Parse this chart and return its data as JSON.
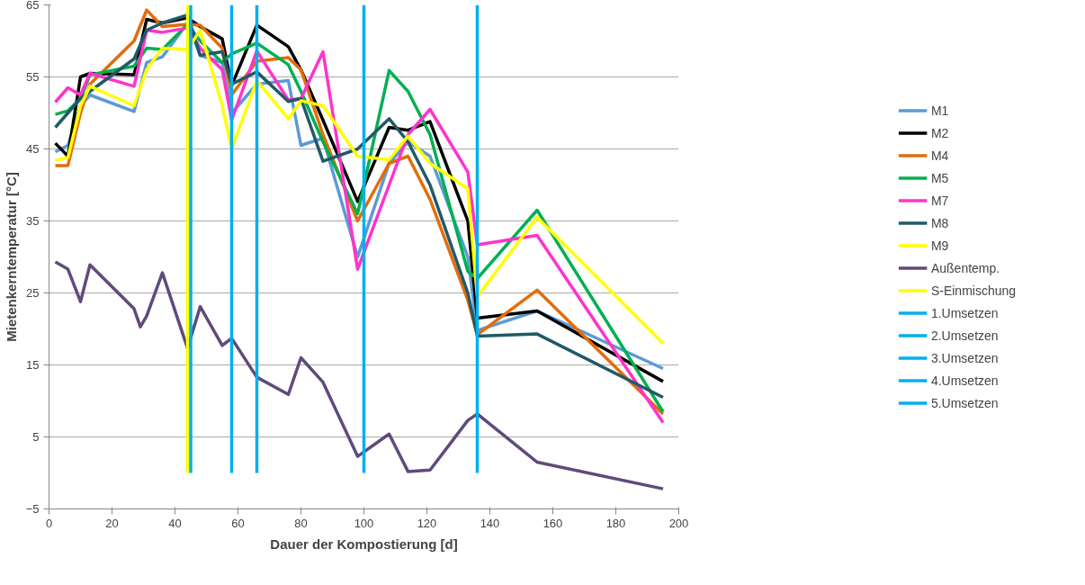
{
  "chart_data": {
    "type": "line",
    "xlabel": "Dauer der Kompostierung [d]",
    "ylabel": "Mietenkerntemperatur [°C]",
    "x": [
      2,
      6,
      10,
      13,
      27,
      31,
      36,
      44,
      48,
      55,
      58,
      66,
      76,
      80,
      87,
      98,
      108,
      114,
      121,
      133,
      136,
      155,
      195
    ],
    "series": [
      {
        "name": "M1",
        "color": "#5b9bd5",
        "values": [
          44.6,
          45.5,
          51,
          52.5,
          50.2,
          57,
          57.8,
          62.5,
          58,
          57,
          50,
          54,
          54.5,
          45.5,
          46.5,
          30,
          43,
          46,
          44,
          30,
          19.8,
          22.5,
          14.5
        ]
      },
      {
        "name": "M2",
        "color": "#000000",
        "values": [
          45.8,
          44,
          55,
          55.5,
          55.3,
          63,
          62.5,
          63.2,
          62,
          60.3,
          53.8,
          62.2,
          59.2,
          56,
          49,
          37.7,
          48,
          47.6,
          48.8,
          35,
          21.5,
          22.5,
          12.7
        ]
      },
      {
        "name": "M4",
        "color": "#e46c0a",
        "values": [
          42.7,
          42.7,
          50,
          54,
          60,
          64.3,
          62,
          62.3,
          62.2,
          59,
          52.5,
          57.2,
          57.7,
          56,
          47,
          35,
          43,
          44,
          38,
          24,
          19.2,
          25.4,
          8.2
        ]
      },
      {
        "name": "M5",
        "color": "#00b050",
        "values": [
          49.8,
          50.3,
          52,
          55.3,
          56.5,
          59,
          58.8,
          62.3,
          60,
          57,
          58.2,
          59.7,
          56.7,
          53,
          46,
          36,
          55.9,
          53,
          47,
          28,
          27,
          36.5,
          8.5
        ]
      },
      {
        "name": "M7",
        "color": "#ff33cc",
        "values": [
          51.5,
          53.5,
          52.5,
          55.5,
          53.7,
          61.5,
          61.2,
          61.8,
          59,
          56,
          49,
          58.6,
          51.8,
          52,
          58.5,
          28.3,
          40,
          47,
          50.5,
          41.8,
          31.7,
          33,
          7
        ]
      },
      {
        "name": "M8",
        "color": "#215968",
        "values": [
          48,
          50,
          52,
          53,
          57.5,
          61.5,
          62.5,
          63.6,
          58,
          58.5,
          54,
          55.7,
          51.6,
          52,
          43.3,
          45,
          49.2,
          46,
          40,
          25,
          19,
          19.3,
          10.5
        ]
      },
      {
        "name": "M9",
        "color": "#ffff00",
        "values": [
          43.4,
          43.8,
          51,
          53.7,
          51,
          56,
          59,
          58.8,
          61.5,
          51,
          45,
          54.5,
          49.2,
          51.7,
          51,
          44,
          43.5,
          46.8,
          43,
          39.5,
          24.5,
          35.5,
          18
        ]
      },
      {
        "name": "Außentemp.",
        "color": "#604a7b",
        "x": [
          2,
          6,
          10,
          13,
          27,
          29,
          31,
          36,
          44,
          48,
          55,
          58,
          66,
          76,
          80,
          87,
          98,
          108,
          114,
          121,
          133,
          136,
          155,
          195
        ],
        "values": [
          29.3,
          28.3,
          23.8,
          28.9,
          22.8,
          20.3,
          21.8,
          27.8,
          17.3,
          23.1,
          17.7,
          18.7,
          13.3,
          10.9,
          16,
          12.6,
          2.3,
          5.4,
          0.2,
          0.4,
          7.3,
          8.2,
          1.5,
          -2.2
        ]
      },
      {
        "name": "S-Einmischung",
        "color": "#ffff00",
        "x": [
          44,
          44
        ],
        "values": [
          0,
          65
        ]
      },
      {
        "name": "1.Umsetzen",
        "color": "#00b0f0",
        "x": [
          45,
          45
        ],
        "values": [
          0,
          65
        ]
      },
      {
        "name": "2.Umsetzen",
        "color": "#00b0f0",
        "x": [
          58,
          58
        ],
        "values": [
          0,
          65
        ]
      },
      {
        "name": "3.Umsetzen",
        "color": "#00b0f0",
        "x": [
          66,
          66
        ],
        "values": [
          0,
          65
        ]
      },
      {
        "name": "4.Umsetzen",
        "color": "#00b0f0",
        "x": [
          100,
          100
        ],
        "values": [
          0,
          65
        ]
      },
      {
        "name": "5.Umsetzen",
        "color": "#00b0f0",
        "x": [
          136,
          136
        ],
        "values": [
          0,
          65
        ]
      }
    ],
    "xlim": [
      0,
      200
    ],
    "xticks": [
      0,
      20,
      40,
      60,
      80,
      100,
      120,
      140,
      160,
      180,
      200
    ],
    "ylim": [
      -5,
      65
    ],
    "yticks": [
      -5,
      5,
      15,
      25,
      35,
      45,
      55,
      65
    ],
    "grid": "y",
    "legend": "right",
    "marker": "none",
    "line_style": "solid"
  }
}
